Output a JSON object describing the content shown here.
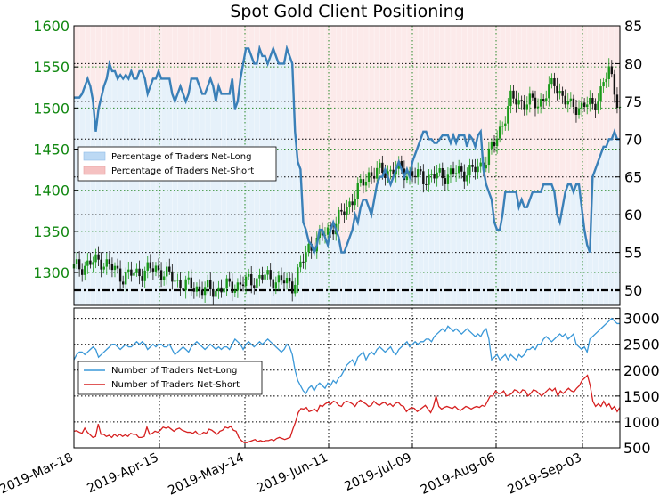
{
  "chart_data": [
    {
      "type": "line",
      "title": "Spot Gold Client Positioning",
      "price_axis": {
        "label": "",
        "ylim": [
          1260,
          1600
        ],
        "ticks": [
          1300,
          1350,
          1400,
          1450,
          1500,
          1550,
          1600
        ],
        "tick_labels": [
          "1300",
          "1350",
          "1400",
          "1450",
          "1500",
          "1550",
          "1600"
        ]
      },
      "pct_axis": {
        "label": "",
        "ylim": [
          48,
          85
        ],
        "ticks": [
          50,
          55,
          60,
          65,
          70,
          75,
          80,
          85
        ],
        "tick_labels": [
          "50",
          "55",
          "60",
          "65",
          "70",
          "75",
          "80",
          "85"
        ]
      },
      "x_ticks": [
        "2019-Mar-18",
        "2019-Apr-15",
        "2019-May-14",
        "2019-Jun-11",
        "2019-Jul-09",
        "2019-Aug-06",
        "2019-Sep-03"
      ],
      "grid": true,
      "reference_line": 50,
      "legend": {
        "placement": "center-left",
        "entries": [
          "Percentage of Traders Net-Long",
          "Percentage of Traders Net-Short"
        ]
      },
      "series": [
        {
          "name": "Percentage of Traders Net-Long",
          "color": "#3a80b8",
          "values": [
            75.5,
            75.5,
            75.5,
            76,
            77,
            78,
            77,
            75,
            71,
            74,
            75.5,
            77,
            78,
            80,
            79,
            79,
            78,
            78.5,
            78,
            78.5,
            78,
            79,
            78,
            78,
            79,
            79,
            78,
            76,
            77,
            78,
            78,
            79,
            78,
            78,
            78,
            78,
            76,
            75,
            76,
            77,
            76,
            75,
            76,
            78,
            78,
            78,
            77,
            76,
            76,
            77,
            78,
            77,
            75,
            77,
            76,
            76,
            76,
            76,
            78,
            74,
            75,
            78,
            80,
            82,
            82,
            81,
            80,
            80,
            82,
            81,
            81,
            80,
            81,
            82,
            81,
            80,
            80,
            80,
            82,
            81,
            80,
            71,
            67,
            66,
            59,
            58,
            56.5,
            56,
            55,
            56,
            58,
            58,
            57,
            56,
            58,
            59,
            58,
            57,
            55,
            55,
            56,
            57,
            58,
            60,
            59,
            61,
            62,
            62,
            61,
            60,
            62,
            64,
            65,
            65,
            66,
            65,
            64,
            65,
            66,
            67,
            66,
            65,
            66,
            65,
            67,
            68,
            69,
            70,
            71,
            71,
            70,
            70,
            69.5,
            69.5,
            70,
            70.5,
            70.5,
            70.5,
            69.5,
            70.5,
            69.5,
            70.5,
            70.5,
            70.5,
            69,
            70.5,
            70,
            69,
            70.5,
            71,
            66,
            64,
            63,
            62,
            59,
            58,
            58,
            60,
            63,
            63,
            63,
            63,
            63,
            61,
            62,
            61,
            61,
            62,
            63,
            63,
            63,
            63,
            64,
            64,
            64,
            64,
            63,
            60,
            59,
            61,
            63,
            64,
            64,
            63,
            64,
            64,
            61,
            58,
            56,
            55,
            65,
            66,
            67,
            68,
            69,
            69,
            70,
            70,
            71,
            70,
            70
          ]
        },
        {
          "name": "Percentage of Traders Net-Short",
          "color": "#d24a4a",
          "values": "100 minus net-long"
        }
      ]
    },
    {
      "type": "line",
      "ylim": [
        500,
        3200
      ],
      "ticks": [
        500,
        1000,
        1500,
        2000,
        2500,
        3000
      ],
      "tick_labels": [
        "500",
        "1000",
        "1500",
        "2000",
        "2500",
        "3000"
      ],
      "grid": true,
      "legend": {
        "placement": "center-left",
        "entries": [
          "Number of Traders Net-Long",
          "Number of Traders Net-Short"
        ]
      },
      "series": [
        {
          "name": "Number of Traders Net-Long",
          "color": "#3a98d8",
          "values": [
            2200,
            2300,
            2350,
            2350,
            2300,
            2350,
            2400,
            2450,
            2400,
            2250,
            2300,
            2350,
            2400,
            2450,
            2500,
            2500,
            2450,
            2400,
            2450,
            2500,
            2450,
            2450,
            2500,
            2550,
            2500,
            2550,
            2500,
            2400,
            2450,
            2500,
            2450,
            2500,
            2500,
            2450,
            2450,
            2500,
            2400,
            2300,
            2350,
            2400,
            2450,
            2400,
            2350,
            2450,
            2500,
            2550,
            2500,
            2450,
            2400,
            2450,
            2500,
            2450,
            2400,
            2450,
            2400,
            2450,
            2450,
            2400,
            2500,
            2600,
            2550,
            2500,
            2400,
            2500,
            2550,
            2500,
            2450,
            2500,
            2550,
            2500,
            2550,
            2600,
            2550,
            2500,
            2450,
            2400,
            2350,
            2400,
            2500,
            2450,
            2300,
            2000,
            1800,
            1700,
            1600,
            1550,
            1650,
            1700,
            1600,
            1700,
            1750,
            1700,
            1650,
            1750,
            1700,
            1800,
            1750,
            1850,
            1900,
            2000,
            2100,
            2150,
            2200,
            2100,
            2250,
            2300,
            2350,
            2200,
            2300,
            2350,
            2300,
            2400,
            2450,
            2400,
            2350,
            2400,
            2450,
            2350,
            2300,
            2400,
            2450,
            2500,
            2550,
            2450,
            2500,
            2550,
            2500,
            2550,
            2550,
            2600,
            2600,
            2550,
            2650,
            2700,
            2750,
            2800,
            2750,
            2850,
            2800,
            2750,
            2800,
            2750,
            2700,
            2750,
            2800,
            2750,
            2700,
            2650,
            2700,
            2650,
            2750,
            2800,
            2600,
            2200,
            2250,
            2300,
            2200,
            2250,
            2300,
            2200,
            2300,
            2250,
            2200,
            2300,
            2250,
            2300,
            2400,
            2400,
            2450,
            2400,
            2500,
            2500,
            2600,
            2650,
            2600,
            2550,
            2600,
            2650,
            2700,
            2650,
            2700,
            2600,
            2650,
            2700,
            2500,
            2450,
            2400,
            2450,
            2350,
            2600,
            2650,
            2700,
            2750,
            2800,
            2850,
            2900,
            2950,
            3000,
            2950,
            2900,
            2900
          ]
        },
        {
          "name": "Number of Traders Net-Short",
          "color": "#d62020",
          "values": [
            820,
            830,
            800,
            780,
            880,
            800,
            750,
            700,
            720,
            960,
            760,
            760,
            720,
            740,
            700,
            760,
            720,
            760,
            720,
            750,
            720,
            780,
            760,
            760,
            700,
            700,
            720,
            900,
            760,
            780,
            820,
            800,
            840,
            900,
            880,
            900,
            860,
            820,
            860,
            880,
            840,
            820,
            800,
            800,
            780,
            820,
            760,
            760,
            800,
            780,
            860,
            840,
            800,
            760,
            820,
            840,
            900,
            880,
            920,
            840,
            820,
            700,
            640,
            600,
            600,
            620,
            640,
            660,
            620,
            640,
            620,
            640,
            640,
            660,
            640,
            680,
            700,
            680,
            660,
            680,
            700,
            860,
            1000,
            1180,
            1260,
            1250,
            1280,
            1200,
            1220,
            1250,
            1200,
            1320,
            1300,
            1350,
            1380,
            1340,
            1400,
            1380,
            1320,
            1300,
            1380,
            1400,
            1380,
            1350,
            1300,
            1380,
            1420,
            1380,
            1350,
            1300,
            1320,
            1400,
            1350,
            1320,
            1360,
            1380,
            1320,
            1350,
            1300,
            1360,
            1380,
            1320,
            1300,
            1200,
            1250,
            1280,
            1260,
            1200,
            1240,
            1280,
            1320,
            1250,
            1180,
            1300,
            1500,
            1300,
            1250,
            1280,
            1300,
            1280,
            1260,
            1300,
            1250,
            1220,
            1260,
            1300,
            1280,
            1250,
            1280,
            1300,
            1280,
            1320,
            1300,
            1400,
            1500,
            1500,
            1600,
            1550,
            1550,
            1600,
            1500,
            1520,
            1550,
            1620,
            1600,
            1550,
            1620,
            1600,
            1500,
            1550,
            1620,
            1600,
            1550,
            1500,
            1550,
            1600,
            1650,
            1600,
            1650,
            1500,
            1600,
            1550,
            1600,
            1650,
            1600,
            1580,
            1650,
            1700,
            1800,
            1850,
            1900,
            1700,
            1400,
            1300,
            1350,
            1300,
            1400,
            1300,
            1350,
            1250,
            1300,
            1200,
            1280
          ]
        }
      ],
      "candles_axis": "left price axis above"
    }
  ]
}
